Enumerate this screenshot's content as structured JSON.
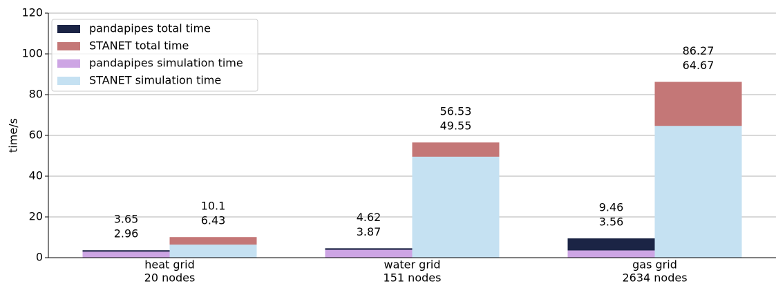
{
  "chart_data": {
    "type": "bar",
    "categories": [
      [
        "heat grid",
        "20 nodes"
      ],
      [
        "water grid",
        "151 nodes"
      ],
      [
        "gas grid",
        "2634 nodes"
      ]
    ],
    "series": [
      {
        "name": "pandapipes total time",
        "color": "#1b2445",
        "values": [
          3.65,
          4.62,
          9.46
        ]
      },
      {
        "name": "STANET total time",
        "color": "#c47777",
        "values": [
          10.1,
          56.53,
          86.27
        ]
      },
      {
        "name": "pandapipes simulation time",
        "color": "#cda5e4",
        "values": [
          2.96,
          3.87,
          3.56
        ]
      },
      {
        "name": "STANET simulation time",
        "color": "#c5e1f2",
        "values": [
          6.43,
          49.55,
          64.67
        ]
      }
    ],
    "ylabel": "time/s",
    "ylim": [
      0,
      120
    ],
    "yticks": [
      0,
      20,
      40,
      60,
      80,
      100,
      120
    ],
    "grid": true,
    "legend": "upper left"
  }
}
